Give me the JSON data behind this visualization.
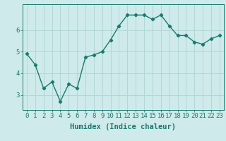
{
  "x": [
    0,
    1,
    2,
    3,
    4,
    5,
    6,
    7,
    8,
    9,
    10,
    11,
    12,
    13,
    14,
    15,
    16,
    17,
    18,
    19,
    20,
    21,
    22,
    23
  ],
  "y": [
    4.9,
    4.4,
    3.3,
    3.6,
    2.7,
    3.5,
    3.3,
    4.75,
    4.85,
    5.0,
    5.55,
    6.2,
    6.7,
    6.7,
    6.7,
    6.5,
    6.7,
    6.2,
    5.75,
    5.75,
    5.45,
    5.35,
    5.6,
    5.75
  ],
  "line_color": "#1a7a6e",
  "marker": "D",
  "marker_size": 2.2,
  "bg_color": "#ceeaea",
  "grid_color": "#aed4d4",
  "xlabel": "Humidex (Indice chaleur)",
  "xlim": [
    -0.5,
    23.5
  ],
  "ylim": [
    2.3,
    7.2
  ],
  "yticks": [
    3,
    4,
    5,
    6
  ],
  "xtick_labels": [
    "0",
    "1",
    "2",
    "3",
    "4",
    "5",
    "6",
    "7",
    "8",
    "9",
    "10",
    "11",
    "12",
    "13",
    "14",
    "15",
    "16",
    "17",
    "18",
    "19",
    "20",
    "21",
    "22",
    "23"
  ],
  "xlabel_fontsize": 7.5,
  "tick_fontsize": 6.5,
  "line_width": 1.0
}
